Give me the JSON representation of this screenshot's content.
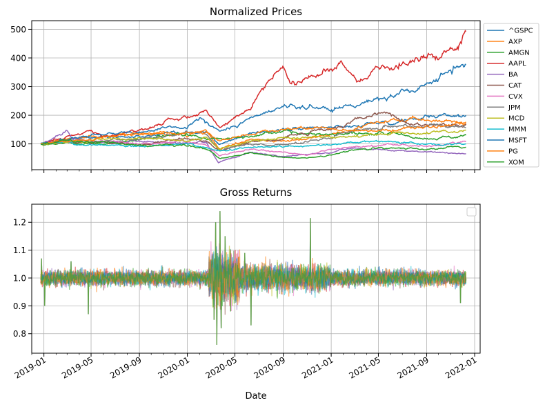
{
  "chart_data": [
    {
      "type": "line",
      "title": "Normalized Prices",
      "xlabel": "",
      "ylabel": "",
      "xlim": [
        "2018-12-01",
        "2022-01-15"
      ],
      "ylim": [
        10,
        530
      ],
      "grid": true,
      "legend_position": "outside-right",
      "x_ticks": [
        "2019-01",
        "2019-05",
        "2019-09",
        "2020-01",
        "2020-05",
        "2020-09",
        "2021-01",
        "2021-05",
        "2021-09",
        "2022-01"
      ],
      "y_ticks": [
        100,
        200,
        300,
        400,
        500
      ],
      "series": [
        {
          "name": "^GSPC",
          "color": "#1f77b4",
          "points": [
            [
              "2018-12-24",
              100
            ],
            [
              "2019-03-01",
              118
            ],
            [
              "2019-06-01",
              124
            ],
            [
              "2019-09-01",
              125
            ],
            [
              "2019-12-31",
              136
            ],
            [
              "2020-02-19",
              144
            ],
            [
              "2020-03-23",
              96
            ],
            [
              "2020-06-08",
              136
            ],
            [
              "2020-09-01",
              150
            ],
            [
              "2020-12-31",
              159
            ],
            [
              "2021-03-01",
              164
            ],
            [
              "2021-06-01",
              178
            ],
            [
              "2021-09-01",
              191
            ],
            [
              "2021-12-10",
              200
            ]
          ]
        },
        {
          "name": "AXP",
          "color": "#ff7f0e",
          "points": [
            [
              "2018-12-24",
              100
            ],
            [
              "2019-03-01",
              117
            ],
            [
              "2019-07-01",
              130
            ],
            [
              "2019-12-31",
              132
            ],
            [
              "2020-02-19",
              145
            ],
            [
              "2020-03-23",
              80
            ],
            [
              "2020-06-08",
              115
            ],
            [
              "2020-09-01",
              108
            ],
            [
              "2020-12-31",
              130
            ],
            [
              "2021-03-01",
              150
            ],
            [
              "2021-06-01",
              180
            ],
            [
              "2021-09-01",
              185
            ],
            [
              "2021-12-10",
              175
            ]
          ]
        },
        {
          "name": "AMGN",
          "color": "#2ca02c",
          "points": [
            [
              "2018-12-24",
              100
            ],
            [
              "2019-03-01",
              105
            ],
            [
              "2019-06-01",
              100
            ],
            [
              "2019-09-01",
              115
            ],
            [
              "2019-12-31",
              135
            ],
            [
              "2020-02-19",
              118
            ],
            [
              "2020-03-23",
              115
            ],
            [
              "2020-07-01",
              138
            ],
            [
              "2020-09-01",
              142
            ],
            [
              "2020-12-31",
              128
            ],
            [
              "2021-03-01",
              140
            ],
            [
              "2021-06-01",
              135
            ],
            [
              "2021-09-01",
              120
            ],
            [
              "2021-12-10",
              125
            ]
          ]
        },
        {
          "name": "AAPL",
          "color": "#d62728",
          "points": [
            [
              "2018-12-24",
              100
            ],
            [
              "2019-03-01",
              125
            ],
            [
              "2019-05-01",
              145
            ],
            [
              "2019-06-01",
              125
            ],
            [
              "2019-09-01",
              145
            ],
            [
              "2019-12-31",
              200
            ],
            [
              "2020-02-19",
              225
            ],
            [
              "2020-03-23",
              155
            ],
            [
              "2020-06-08",
              230
            ],
            [
              "2020-08-31",
              370
            ],
            [
              "2020-09-23",
              300
            ],
            [
              "2020-12-31",
              365
            ],
            [
              "2021-01-26",
              380
            ],
            [
              "2021-03-08",
              310
            ],
            [
              "2021-05-01",
              365
            ],
            [
              "2021-07-15",
              375
            ],
            [
              "2021-09-01",
              415
            ],
            [
              "2021-10-05",
              395
            ],
            [
              "2021-12-01",
              470
            ],
            [
              "2021-12-10",
              495
            ]
          ]
        },
        {
          "name": "BA",
          "color": "#9467bd",
          "points": [
            [
              "2018-12-24",
              100
            ],
            [
              "2019-03-01",
              140
            ],
            [
              "2019-03-15",
              115
            ],
            [
              "2019-06-01",
              105
            ],
            [
              "2019-09-01",
              110
            ],
            [
              "2019-12-31",
              100
            ],
            [
              "2020-02-19",
              105
            ],
            [
              "2020-03-20",
              35
            ],
            [
              "2020-06-08",
              70
            ],
            [
              "2020-09-01",
              55
            ],
            [
              "2020-12-31",
              70
            ],
            [
              "2021-03-12",
              85
            ],
            [
              "2021-06-01",
              78
            ],
            [
              "2021-09-01",
              72
            ],
            [
              "2021-12-10",
              68
            ]
          ]
        },
        {
          "name": "CAT",
          "color": "#8c564b",
          "points": [
            [
              "2018-12-24",
              100
            ],
            [
              "2019-03-01",
              110
            ],
            [
              "2019-06-01",
              105
            ],
            [
              "2019-09-01",
              100
            ],
            [
              "2019-12-31",
              120
            ],
            [
              "2020-02-19",
              110
            ],
            [
              "2020-03-23",
              75
            ],
            [
              "2020-06-08",
              105
            ],
            [
              "2020-09-01",
              120
            ],
            [
              "2020-12-31",
              150
            ],
            [
              "2021-03-01",
              180
            ],
            [
              "2021-05-10",
              215
            ],
            [
              "2021-07-15",
              170
            ],
            [
              "2021-09-01",
              165
            ],
            [
              "2021-12-10",
              165
            ]
          ]
        },
        {
          "name": "CVX",
          "color": "#e377c2",
          "points": [
            [
              "2018-12-24",
              100
            ],
            [
              "2019-03-01",
              112
            ],
            [
              "2019-06-01",
              108
            ],
            [
              "2019-09-01",
              100
            ],
            [
              "2019-12-31",
              110
            ],
            [
              "2020-02-19",
              95
            ],
            [
              "2020-03-23",
              60
            ],
            [
              "2020-06-08",
              82
            ],
            [
              "2020-09-01",
              72
            ],
            [
              "2020-10-28",
              60
            ],
            [
              "2020-12-31",
              80
            ],
            [
              "2021-03-01",
              92
            ],
            [
              "2021-06-01",
              96
            ],
            [
              "2021-09-01",
              90
            ],
            [
              "2021-12-10",
              108
            ]
          ]
        },
        {
          "name": "JPM",
          "color": "#7f7f7f",
          "points": [
            [
              "2018-12-24",
              100
            ],
            [
              "2019-03-01",
              105
            ],
            [
              "2019-06-01",
              112
            ],
            [
              "2019-09-01",
              115
            ],
            [
              "2019-12-31",
              140
            ],
            [
              "2020-02-19",
              135
            ],
            [
              "2020-03-23",
              78
            ],
            [
              "2020-06-08",
              100
            ],
            [
              "2020-09-01",
              95
            ],
            [
              "2020-12-31",
              125
            ],
            [
              "2021-03-01",
              150
            ],
            [
              "2021-06-01",
              160
            ],
            [
              "2021-09-01",
              165
            ],
            [
              "2021-12-10",
              160
            ]
          ]
        },
        {
          "name": "MCD",
          "color": "#bcbd22",
          "points": [
            [
              "2018-12-24",
              100
            ],
            [
              "2019-03-01",
              105
            ],
            [
              "2019-06-01",
              115
            ],
            [
              "2019-09-01",
              120
            ],
            [
              "2019-12-31",
              112
            ],
            [
              "2020-02-19",
              120
            ],
            [
              "2020-03-23",
              82
            ],
            [
              "2020-06-08",
              108
            ],
            [
              "2020-09-01",
              120
            ],
            [
              "2020-12-31",
              122
            ],
            [
              "2021-03-01",
              125
            ],
            [
              "2021-06-01",
              133
            ],
            [
              "2021-09-01",
              138
            ],
            [
              "2021-12-10",
              150
            ]
          ]
        },
        {
          "name": "MMM",
          "color": "#17becf",
          "points": [
            [
              "2018-12-24",
              100
            ],
            [
              "2019-03-01",
              110
            ],
            [
              "2019-04-24",
              95
            ],
            [
              "2019-06-01",
              95
            ],
            [
              "2019-09-01",
              90
            ],
            [
              "2019-12-31",
              98
            ],
            [
              "2020-02-19",
              85
            ],
            [
              "2020-03-23",
              75
            ],
            [
              "2020-06-08",
              88
            ],
            [
              "2020-09-01",
              90
            ],
            [
              "2020-12-31",
              98
            ],
            [
              "2021-03-01",
              105
            ],
            [
              "2021-06-01",
              110
            ],
            [
              "2021-09-01",
              100
            ],
            [
              "2021-12-10",
              98
            ]
          ]
        },
        {
          "name": "MSFT",
          "color": "#1f77b4",
          "points": [
            [
              "2018-12-24",
              100
            ],
            [
              "2019-03-01",
              115
            ],
            [
              "2019-06-01",
              135
            ],
            [
              "2019-09-01",
              140
            ],
            [
              "2019-12-31",
              160
            ],
            [
              "2020-02-10",
              190
            ],
            [
              "2020-03-23",
              140
            ],
            [
              "2020-06-08",
              190
            ],
            [
              "2020-09-01",
              230
            ],
            [
              "2020-12-31",
              225
            ],
            [
              "2021-03-01",
              235
            ],
            [
              "2021-06-01",
              265
            ],
            [
              "2021-09-01",
              305
            ],
            [
              "2021-11-19",
              370
            ],
            [
              "2021-12-10",
              355
            ]
          ]
        },
        {
          "name": "PG",
          "color": "#ff7f0e",
          "points": [
            [
              "2018-12-24",
              100
            ],
            [
              "2019-03-01",
              110
            ],
            [
              "2019-06-01",
              125
            ],
            [
              "2019-09-01",
              135
            ],
            [
              "2019-12-31",
              140
            ],
            [
              "2020-02-19",
              140
            ],
            [
              "2020-03-23",
              115
            ],
            [
              "2020-06-08",
              130
            ],
            [
              "2020-09-01",
              152
            ],
            [
              "2020-12-31",
              155
            ],
            [
              "2021-03-01",
              145
            ],
            [
              "2021-06-01",
              150
            ],
            [
              "2021-09-01",
              160
            ],
            [
              "2021-12-10",
              175
            ]
          ]
        },
        {
          "name": "XOM",
          "color": "#2ca02c",
          "points": [
            [
              "2018-12-24",
              100
            ],
            [
              "2019-03-01",
              112
            ],
            [
              "2019-06-01",
              105
            ],
            [
              "2019-09-01",
              95
            ],
            [
              "2019-12-31",
              95
            ],
            [
              "2020-02-19",
              80
            ],
            [
              "2020-03-23",
              50
            ],
            [
              "2020-06-08",
              68
            ],
            [
              "2020-09-01",
              55
            ],
            [
              "2020-10-30",
              48
            ],
            [
              "2020-12-31",
              60
            ],
            [
              "2021-03-01",
              80
            ],
            [
              "2021-06-01",
              88
            ],
            [
              "2021-09-01",
              80
            ],
            [
              "2021-12-10",
              92
            ]
          ]
        }
      ]
    },
    {
      "type": "line",
      "title": "Gross Returns",
      "xlabel": "Date",
      "ylabel": "",
      "xlim": [
        "2018-12-01",
        "2022-01-15"
      ],
      "ylim": [
        0.73,
        1.265
      ],
      "grid": true,
      "legend_position": "upper-right (empty)",
      "x_ticks": [
        "2019-01",
        "2019-05",
        "2019-09",
        "2020-01",
        "2020-05",
        "2020-09",
        "2021-01",
        "2021-05",
        "2021-09",
        "2022-01"
      ],
      "y_ticks": [
        0.8,
        0.9,
        1.0,
        1.1,
        1.2
      ],
      "spikes": [
        [
          "2018-12-26",
          1.07
        ],
        [
          "2019-01-03",
          0.9
        ],
        [
          "2019-03-11",
          1.06
        ],
        [
          "2019-04-24",
          0.87
        ],
        [
          "2020-03-09",
          0.85
        ],
        [
          "2020-03-13",
          1.2
        ],
        [
          "2020-03-16",
          0.76
        ],
        [
          "2020-03-24",
          1.24
        ],
        [
          "2020-03-27",
          0.82
        ],
        [
          "2020-04-06",
          1.15
        ],
        [
          "2020-04-20",
          0.88
        ],
        [
          "2020-05-26",
          1.09
        ],
        [
          "2020-06-11",
          0.83
        ],
        [
          "2020-11-09",
          1.215
        ],
        [
          "2021-11-26",
          0.91
        ]
      ]
    }
  ]
}
